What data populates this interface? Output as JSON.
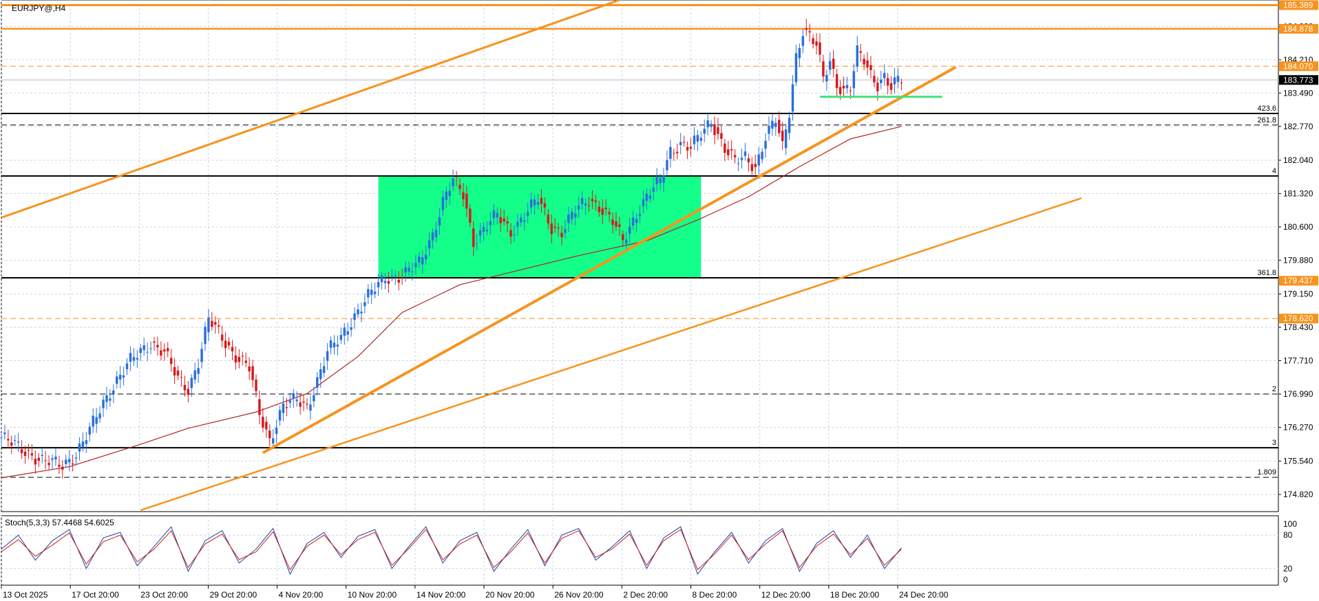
{
  "chart_data": [
    {
      "type": "candlestick",
      "title": "EURJPY@,H4",
      "y_ticks": [
        "184.930",
        "184.210",
        "183.490",
        "182.770",
        "182.040",
        "181.320",
        "180.600",
        "179.880",
        "179.150",
        "178.430",
        "177.710",
        "176.990",
        "176.270",
        "175.540",
        "174.820"
      ],
      "ylim": [
        174.45,
        185.5
      ],
      "x_ticks": [
        "13 Oct 2025",
        "17 Oct 20:00",
        "23 Oct 20:00",
        "29 Oct 20:00",
        "4 Nov 20:00",
        "10 Nov 20:00",
        "14 Nov 20:00",
        "20 Nov 20:00",
        "26 Nov 20:00",
        "2 Dec 20:00",
        "8 Dec 20:00",
        "12 Dec 20:00",
        "18 Dec 20:00",
        "24 Dec 20:00"
      ],
      "x_index_range": [
        0,
        376
      ],
      "last_index": 265,
      "grid": true,
      "price_labels": [
        {
          "text": "185.389",
          "value": 185.389,
          "color": "#f7931e"
        },
        {
          "text": "184.878",
          "value": 184.878,
          "color": "#f7931e"
        },
        {
          "text": "184.070",
          "value": 184.07,
          "color": "#f7931e"
        },
        {
          "text": "183.773",
          "value": 183.773,
          "color": "#000000"
        },
        {
          "text": "179.437",
          "value": 179.437,
          "color": "#f7931e"
        },
        {
          "text": "178.620",
          "value": 178.62,
          "color": "#f7931e"
        }
      ],
      "horizontal_lines": [
        {
          "value": 185.389,
          "style": "solid",
          "color": "#f7931e",
          "width": 3
        },
        {
          "value": 184.878,
          "style": "solid",
          "color": "#f7931e",
          "width": 2.5
        },
        {
          "value": 184.07,
          "style": "dashed",
          "color": "#f7931e",
          "width": 1
        },
        {
          "value": 183.773,
          "style": "solid",
          "color": "#b0b8c8",
          "width": 1
        },
        {
          "value": 183.05,
          "style": "solid",
          "color": "#000000",
          "width": 2,
          "label": "423.6"
        },
        {
          "value": 182.8,
          "style": "dashed",
          "color": "#000000",
          "width": 1,
          "label": "261.8"
        },
        {
          "value": 181.7,
          "style": "solid",
          "color": "#000000",
          "width": 2,
          "label": "4"
        },
        {
          "value": 179.5,
          "style": "solid",
          "color": "#000000",
          "width": 2,
          "label": "361.8"
        },
        {
          "value": 178.62,
          "style": "dashed",
          "color": "#f7931e",
          "width": 1
        },
        {
          "value": 176.99,
          "style": "dashed",
          "color": "#000000",
          "width": 1,
          "label": "2"
        },
        {
          "value": 175.83,
          "style": "solid",
          "color": "#000000",
          "width": 2,
          "label": "3"
        },
        {
          "value": 175.19,
          "style": "dashed",
          "color": "#000000",
          "width": 1,
          "label": "1.809"
        }
      ],
      "consolidation_box": {
        "x1_index": 111,
        "x2_index": 206,
        "top": 181.7,
        "bottom": 179.5,
        "color": "#00ff7f"
      },
      "support_segment": {
        "x1_index": 241,
        "x2_index": 277,
        "value": 183.41,
        "color": "#3ee07a"
      },
      "trendlines": [
        {
          "x1_index": 0,
          "y1": 180.8,
          "x2_index": 182,
          "y2": 185.5,
          "color": "#f7931e",
          "width": 3
        },
        {
          "x1_index": 77,
          "y1": 175.72,
          "x2_index": 281,
          "y2": 184.05,
          "color": "#f7931e",
          "width": 4
        },
        {
          "x1_index": 41,
          "y1": 174.48,
          "x2_index": 318,
          "y2": 181.22,
          "color": "#f7931e",
          "width": 2.5
        }
      ],
      "moving_average": {
        "color": "#b22222",
        "points": [
          [
            0,
            175.18
          ],
          [
            20,
            175.42
          ],
          [
            40,
            175.88
          ],
          [
            55,
            176.25
          ],
          [
            75,
            176.6
          ],
          [
            90,
            177.0
          ],
          [
            105,
            177.8
          ],
          [
            118,
            178.75
          ],
          [
            135,
            179.35
          ],
          [
            150,
            179.62
          ],
          [
            170,
            179.98
          ],
          [
            190,
            180.3
          ],
          [
            205,
            180.75
          ],
          [
            220,
            181.25
          ],
          [
            235,
            181.9
          ],
          [
            250,
            182.5
          ],
          [
            265,
            182.77
          ]
        ]
      },
      "price_path": [
        [
          0,
          176.05
        ],
        [
          6,
          175.8
        ],
        [
          12,
          175.55
        ],
        [
          18,
          175.45
        ],
        [
          22,
          175.7
        ],
        [
          26,
          176.2
        ],
        [
          30,
          176.8
        ],
        [
          34,
          177.3
        ],
        [
          38,
          177.7
        ],
        [
          44,
          178.1
        ],
        [
          48,
          177.9
        ],
        [
          52,
          177.3
        ],
        [
          55,
          177.1
        ],
        [
          58,
          177.7
        ],
        [
          61,
          178.6
        ],
        [
          64,
          178.3
        ],
        [
          68,
          177.9
        ],
        [
          73,
          177.55
        ],
        [
          76,
          176.55
        ],
        [
          79,
          176.0
        ],
        [
          83,
          176.75
        ],
        [
          87,
          176.85
        ],
        [
          90,
          176.7
        ],
        [
          93,
          177.3
        ],
        [
          96,
          177.9
        ],
        [
          100,
          178.2
        ],
        [
          104,
          178.7
        ],
        [
          108,
          179.1
        ],
        [
          113,
          179.5
        ],
        [
          118,
          179.55
        ],
        [
          123,
          179.8
        ],
        [
          127,
          180.45
        ],
        [
          130,
          181.15
        ],
        [
          133,
          181.6
        ],
        [
          136,
          181.3
        ],
        [
          139,
          180.3
        ],
        [
          142,
          180.55
        ],
        [
          146,
          180.85
        ],
        [
          150,
          180.5
        ],
        [
          154,
          180.85
        ],
        [
          158,
          181.2
        ],
        [
          162,
          180.6
        ],
        [
          165,
          180.5
        ],
        [
          169,
          180.95
        ],
        [
          173,
          181.2
        ],
        [
          176,
          181.05
        ],
        [
          180,
          180.7
        ],
        [
          183,
          180.3
        ],
        [
          187,
          180.9
        ],
        [
          191,
          181.35
        ],
        [
          194,
          181.6
        ],
        [
          197,
          182.25
        ],
        [
          200,
          182.4
        ],
        [
          203,
          182.3
        ],
        [
          206,
          182.6
        ],
        [
          209,
          182.9
        ],
        [
          211,
          182.6
        ],
        [
          213,
          182.3
        ],
        [
          216,
          182.0
        ],
        [
          219,
          182.1
        ],
        [
          222,
          181.9
        ],
        [
          225,
          182.55
        ],
        [
          228,
          182.9
        ],
        [
          230,
          182.3
        ],
        [
          232,
          183.1
        ],
        [
          234,
          184.3
        ],
        [
          236,
          184.85
        ],
        [
          238,
          184.7
        ],
        [
          240,
          184.5
        ],
        [
          242,
          183.8
        ],
        [
          244,
          184.2
        ],
        [
          246,
          183.7
        ],
        [
          248,
          183.55
        ],
        [
          250,
          183.6
        ],
        [
          252,
          184.35
        ],
        [
          254,
          184.2
        ],
        [
          256,
          183.9
        ],
        [
          258,
          183.7
        ],
        [
          260,
          183.85
        ],
        [
          262,
          183.6
        ],
        [
          264,
          183.75
        ],
        [
          265,
          183.773
        ]
      ]
    },
    {
      "type": "line",
      "title": "Stoch(5,3,3) 57.4468 54.6025",
      "y_ticks": [
        "100",
        "80",
        "20",
        "0"
      ],
      "ylim": [
        0,
        100
      ],
      "series": [
        {
          "name": "main",
          "color": "#1f3fa0",
          "values": [
            55,
            80,
            35,
            70,
            90,
            20,
            75,
            85,
            25,
            60,
            95,
            15,
            70,
            88,
            30,
            55,
            92,
            10,
            65,
            85,
            40,
            78,
            90,
            20,
            60,
            95,
            30,
            70,
            85,
            15,
            55,
            90,
            25,
            80,
            92,
            35,
            60,
            88,
            20,
            75,
            95,
            10,
            50,
            85,
            30,
            70,
            92,
            15,
            65,
            88,
            40,
            80,
            20,
            57
          ]
        },
        {
          "name": "signal",
          "color": "#c81e1e",
          "values": [
            50,
            72,
            42,
            62,
            84,
            28,
            68,
            80,
            32,
            55,
            88,
            22,
            64,
            82,
            36,
            50,
            86,
            18,
            60,
            80,
            45,
            72,
            85,
            26,
            56,
            90,
            36,
            64,
            80,
            22,
            50,
            84,
            30,
            74,
            88,
            40,
            56,
            82,
            26,
            70,
            90,
            18,
            46,
            80,
            36,
            64,
            88,
            22,
            60,
            82,
            45,
            74,
            26,
            54.6
          ]
        }
      ]
    }
  ]
}
